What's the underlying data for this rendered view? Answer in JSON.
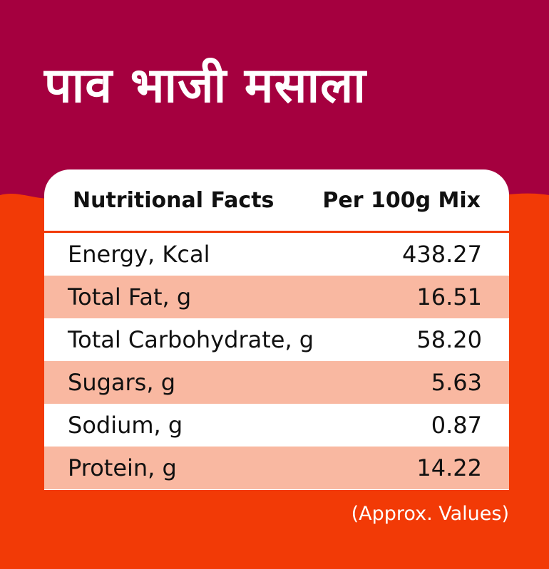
{
  "title": "पाव भाजी मसाला",
  "colors": {
    "maroon": "#a5003f",
    "orange": "#f23a06",
    "row_shade": "#f9b8a1",
    "card": "#ffffff"
  },
  "table": {
    "header_left": "Nutritional Facts",
    "header_right": "Per 100g Mix",
    "rows": [
      {
        "label": "Energy, Kcal",
        "value": "438.27"
      },
      {
        "label": "Total Fat, g",
        "value": "16.51"
      },
      {
        "label": "Total Carbohydrate, g",
        "value": "58.20"
      },
      {
        "label": "Sugars, g",
        "value": "5.63"
      },
      {
        "label": "Sodium, g",
        "value": "0.87"
      },
      {
        "label": "Protein, g",
        "value": "14.22"
      }
    ]
  },
  "note": "(Approx. Values)"
}
